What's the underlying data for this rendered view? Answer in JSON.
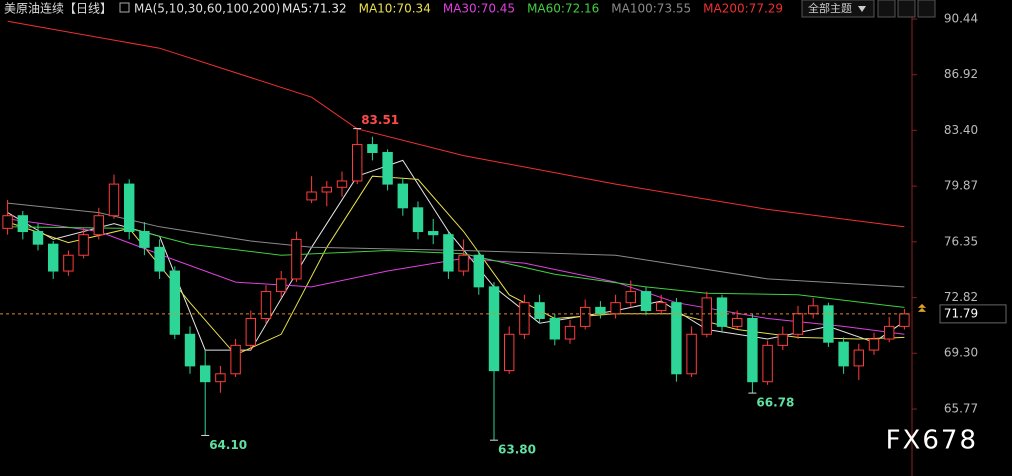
{
  "header": {
    "symbol": "美原油连续",
    "period": "【日线】",
    "ma_params": "MA(5,10,30,60,100,200)",
    "theme_button": "全部主题",
    "watermark": "FX678"
  },
  "chart_data": {
    "type": "candlestick",
    "ylim": [
      62.42,
      91.33
    ],
    "yticks": [
      90.44,
      86.92,
      {
        "value": 83.4,
        "label": "83.40"
      },
      79.87,
      76.35,
      72.82,
      {
        "value": 69.3,
        "label": "69.30"
      },
      65.77
    ],
    "up_color": "#ff3c3c",
    "down_color": "#2dd696",
    "last_price": 71.79,
    "annotations": [
      83.51,
      {
        "value": 64.1,
        "label": "64.10"
      },
      {
        "value": 63.8,
        "label": "63.80"
      },
      66.78
    ],
    "candles": [
      [
        77.2,
        79.0,
        76.8,
        78.0
      ],
      [
        78.0,
        78.3,
        76.5,
        77.0
      ],
      [
        77.0,
        77.5,
        75.8,
        76.2
      ],
      [
        76.2,
        76.4,
        74.0,
        74.5
      ],
      [
        74.5,
        75.8,
        74.2,
        75.5
      ],
      [
        75.5,
        77.2,
        75.3,
        76.8
      ],
      [
        76.8,
        78.5,
        76.5,
        78.0
      ],
      [
        78.0,
        80.6,
        77.8,
        80.0
      ],
      [
        80.0,
        80.3,
        76.5,
        77.0
      ],
      [
        77.0,
        77.6,
        75.5,
        76.0
      ],
      [
        76.0,
        76.5,
        74.0,
        74.5
      ],
      [
        74.5,
        74.8,
        70.2,
        70.5
      ],
      [
        70.5,
        71.0,
        68.0,
        68.5
      ],
      [
        68.5,
        69.5,
        64.1,
        67.5
      ],
      [
        67.5,
        68.5,
        66.8,
        68.0
      ],
      [
        68.0,
        70.2,
        67.8,
        69.8
      ],
      [
        69.8,
        72.0,
        69.5,
        71.5
      ],
      [
        71.5,
        73.6,
        71.2,
        73.2
      ],
      [
        73.2,
        74.5,
        72.8,
        74.0
      ],
      [
        74.0,
        77.0,
        73.8,
        76.5
      ],
      [
        79.0,
        80.5,
        78.8,
        79.5
      ],
      [
        79.5,
        80.2,
        78.6,
        79.8
      ],
      [
        79.8,
        80.8,
        79.2,
        80.2
      ],
      [
        80.2,
        83.51,
        80.0,
        82.5
      ],
      [
        82.5,
        83.0,
        81.5,
        82.0
      ],
      [
        82.0,
        82.2,
        79.6,
        80.0
      ],
      [
        80.0,
        80.4,
        78.0,
        78.5
      ],
      [
        78.5,
        78.9,
        76.5,
        77.0
      ],
      [
        77.0,
        77.8,
        76.2,
        76.8
      ],
      [
        76.8,
        77.0,
        74.0,
        74.5
      ],
      [
        74.5,
        76.5,
        74.2,
        75.5
      ],
      [
        75.5,
        75.8,
        73.0,
        73.5
      ],
      [
        73.5,
        73.8,
        63.8,
        68.2
      ],
      [
        68.2,
        71.0,
        68.0,
        70.5
      ],
      [
        70.5,
        73.0,
        70.2,
        72.5
      ],
      [
        72.5,
        73.0,
        71.2,
        71.5
      ],
      [
        71.5,
        71.8,
        69.8,
        70.2
      ],
      [
        70.2,
        71.4,
        69.9,
        71.0
      ],
      [
        71.0,
        72.7,
        70.8,
        72.2
      ],
      [
        72.2,
        72.6,
        71.5,
        71.8
      ],
      [
        71.8,
        73.0,
        71.5,
        72.5
      ],
      [
        72.5,
        73.9,
        72.2,
        73.2
      ],
      [
        73.2,
        73.5,
        71.7,
        72.0
      ],
      [
        72.0,
        73.0,
        71.8,
        72.5
      ],
      [
        72.5,
        72.8,
        67.5,
        68.0
      ],
      [
        68.0,
        71.0,
        67.8,
        70.5
      ],
      [
        70.5,
        73.2,
        70.3,
        72.8
      ],
      [
        72.8,
        73.0,
        70.6,
        71.0
      ],
      [
        71.0,
        72.0,
        70.8,
        71.5
      ],
      [
        71.5,
        71.8,
        66.78,
        67.5
      ],
      [
        67.5,
        70.1,
        67.3,
        69.8
      ],
      [
        69.8,
        71.0,
        69.5,
        70.5
      ],
      [
        70.5,
        72.3,
        70.2,
        71.8
      ],
      [
        71.8,
        72.8,
        71.5,
        72.3
      ],
      [
        72.3,
        72.5,
        69.7,
        70.0
      ],
      [
        70.0,
        70.3,
        68.0,
        68.5
      ],
      [
        68.5,
        69.9,
        67.6,
        69.5
      ],
      [
        69.5,
        70.6,
        69.2,
        70.2
      ],
      [
        70.2,
        71.6,
        70.0,
        71.0
      ],
      [
        71.0,
        72.1,
        70.8,
        71.79
      ]
    ],
    "series": [
      {
        "name": "MA5:71.32",
        "color": "#e6e6e6",
        "x": [
          0,
          3,
          7,
          10,
          13,
          16,
          20,
          23,
          26,
          29,
          32,
          35,
          40,
          43,
          46,
          50,
          54,
          57,
          59
        ],
        "values": [
          78.2,
          76.5,
          77.5,
          76.7,
          69.5,
          69.5,
          76.0,
          80.5,
          81.5,
          77.0,
          73.5,
          71.2,
          72.0,
          72.6,
          70.8,
          70.2,
          71.0,
          70.0,
          71.3
        ]
      },
      {
        "name": "MA10:70.34",
        "color": "#e8e04a",
        "x": [
          0,
          4,
          8,
          12,
          15,
          18,
          21,
          24,
          27,
          30,
          33,
          36,
          40,
          44,
          48,
          52,
          56,
          59
        ],
        "values": [
          77.6,
          76.3,
          77.2,
          72.5,
          69.2,
          70.5,
          76.0,
          80.5,
          80.3,
          77.0,
          73.0,
          71.5,
          71.8,
          71.8,
          70.8,
          70.3,
          70.2,
          70.3
        ]
      },
      {
        "name": "MA30:70.45",
        "color": "#e040e0",
        "x": [
          0,
          6,
          11,
          15,
          20,
          25,
          30,
          34,
          40,
          44,
          50,
          55,
          59
        ],
        "values": [
          77.8,
          77.0,
          75.2,
          73.8,
          73.5,
          74.5,
          75.3,
          75.0,
          73.8,
          72.5,
          71.5,
          71.0,
          70.5
        ]
      },
      {
        "name": "MA60:72.16",
        "color": "#40d040",
        "x": [
          0,
          8,
          12,
          18,
          25,
          30,
          36,
          42,
          46,
          52,
          59
        ],
        "values": [
          77.3,
          77.2,
          76.2,
          75.5,
          75.8,
          75.6,
          74.3,
          73.5,
          73.1,
          73.0,
          72.2
        ]
      },
      {
        "name": "MA100:73.55",
        "color": "#8a8a8a",
        "x": [
          0,
          6,
          10,
          16,
          20,
          30,
          40,
          50,
          59
        ],
        "values": [
          78.8,
          78.2,
          77.3,
          76.4,
          76.0,
          75.8,
          75.5,
          74.0,
          73.5
        ]
      },
      {
        "name": "MA200:77.29",
        "color": "#f03030",
        "x": [
          0,
          10,
          20,
          23,
          30,
          40,
          50,
          59
        ],
        "values": [
          90.3,
          88.6,
          85.5,
          83.5,
          81.8,
          80.0,
          78.4,
          77.3
        ]
      }
    ]
  }
}
